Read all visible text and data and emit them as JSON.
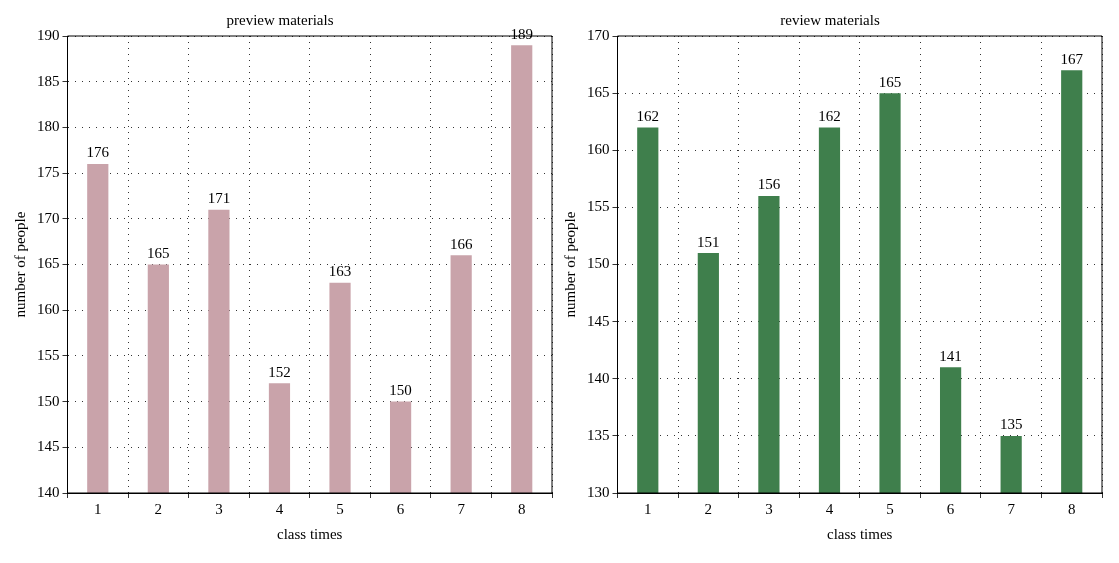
{
  "chart_data": [
    {
      "type": "bar",
      "title": "preview materials",
      "xlabel": "class times",
      "ylabel": "number of people",
      "categories": [
        "1",
        "2",
        "3",
        "4",
        "5",
        "6",
        "7",
        "8"
      ],
      "values": [
        176,
        165,
        171,
        152,
        163,
        150,
        166,
        189
      ],
      "color": "#c9a3aa",
      "ylim": [
        140,
        190
      ],
      "yticks": [
        140,
        145,
        150,
        155,
        160,
        165,
        170,
        175,
        180,
        185,
        190
      ],
      "grid": true,
      "data_labels": true
    },
    {
      "type": "bar",
      "title": "review materials",
      "xlabel": "class times",
      "ylabel": "number of people",
      "categories": [
        "1",
        "2",
        "3",
        "4",
        "5",
        "6",
        "7",
        "8"
      ],
      "values": [
        162,
        151,
        156,
        162,
        165,
        141,
        135,
        167
      ],
      "color": "#3f7f4c",
      "ylim": [
        130,
        170
      ],
      "yticks": [
        130,
        135,
        140,
        145,
        150,
        155,
        160,
        165,
        170
      ],
      "grid": true,
      "data_labels": true
    }
  ]
}
